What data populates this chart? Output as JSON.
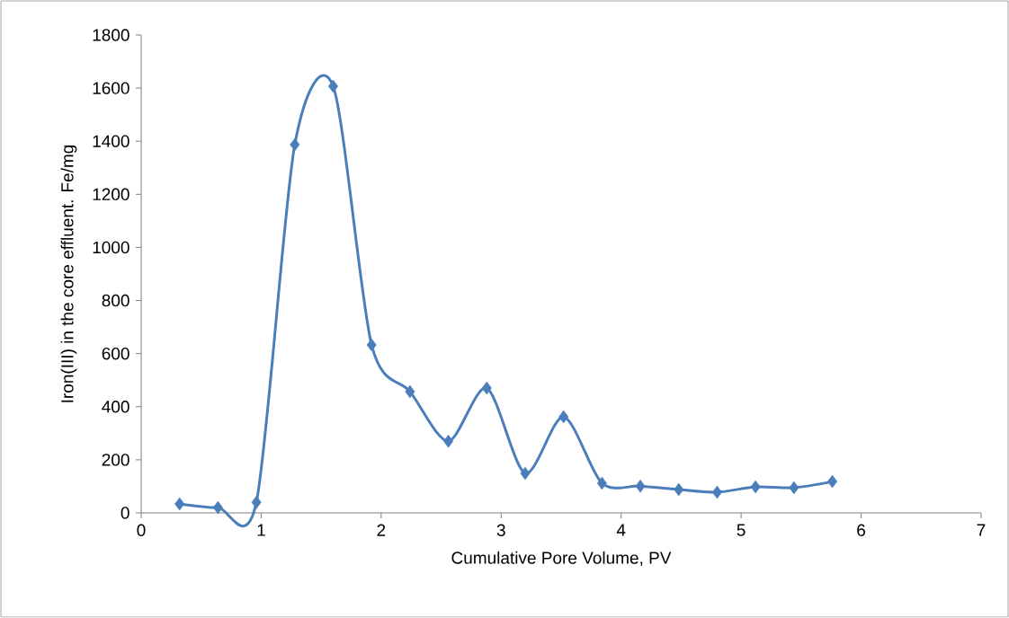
{
  "chart_data": {
    "type": "line",
    "xlabel": "Cumulative Pore Volume, PV",
    "ylabel": "Iron(III) in the core effluent. Fe/mg",
    "series": [
      {
        "color": "#4a7ebb",
        "x": [
          0.32,
          0.64,
          0.96,
          1.28,
          1.6,
          1.92,
          2.24,
          2.56,
          2.88,
          3.2,
          3.52,
          3.84,
          4.16,
          4.48,
          4.8,
          5.12,
          5.44,
          5.76
        ],
        "values": [
          34,
          20,
          40,
          1387,
          1607,
          633,
          457,
          270,
          470,
          149,
          362,
          112,
          101,
          88,
          78,
          98,
          95,
          118
        ]
      }
    ],
    "xlim": [
      0,
      7
    ],
    "xticks": [
      0,
      1,
      2,
      3,
      4,
      5,
      6,
      7
    ],
    "ylim": [
      0,
      1800
    ],
    "yticks": [
      0,
      200,
      400,
      600,
      800,
      1000,
      1200,
      1400,
      1600,
      1800
    ],
    "marker": "diamond",
    "line_style": "solid"
  }
}
